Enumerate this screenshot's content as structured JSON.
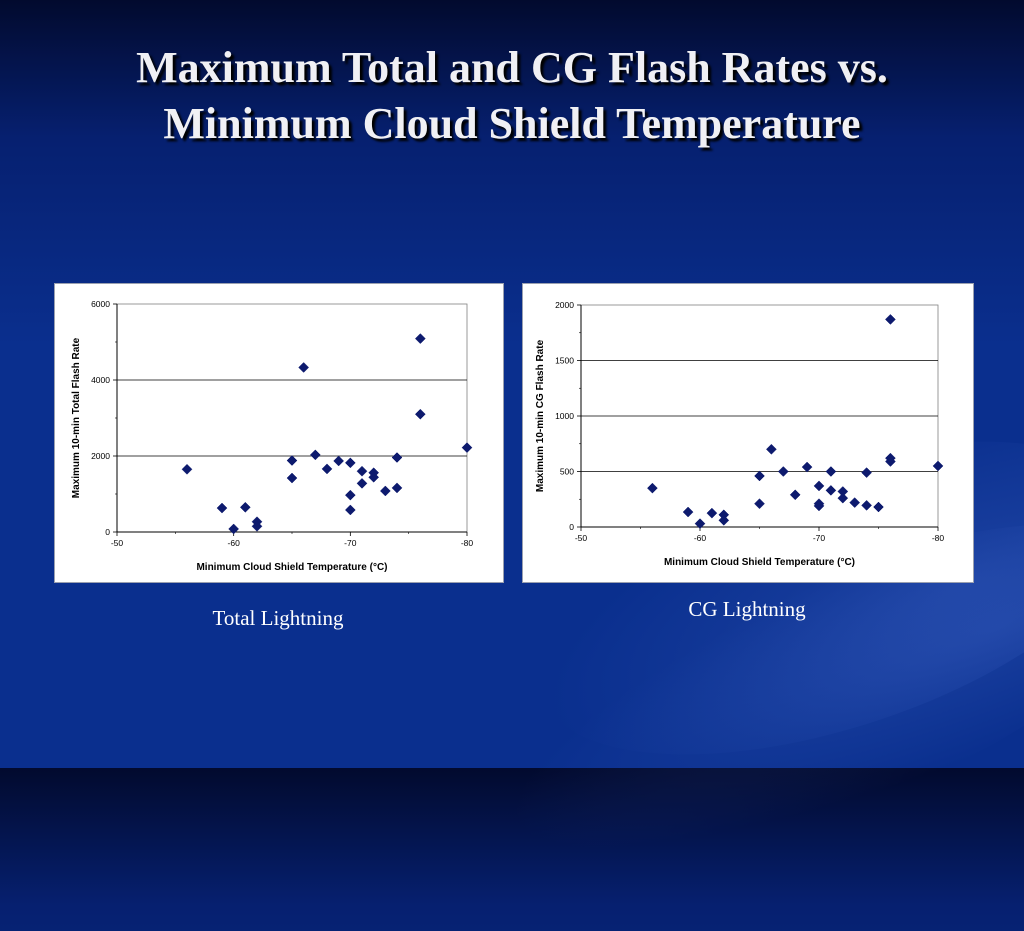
{
  "slide": {
    "title_line1": "Maximum Total and CG Flash Rates vs.",
    "title_line2": "Minimum Cloud Shield Temperature"
  },
  "captions": {
    "total": "Total Lightning",
    "cg": "CG Lightning"
  },
  "colors": {
    "marker": "#0d1a6e",
    "gridline": "#000000",
    "background": "#0a2f8e"
  },
  "chart_data": [
    {
      "type": "scatter",
      "id": "total",
      "xlabel": "Minimum Cloud Shield Temperature (°C)",
      "ylabel": "Maximum 10-min Total Flash Rate",
      "xlim": [
        -50,
        -80
      ],
      "ylim": [
        0,
        6000
      ],
      "xticks": [
        -50,
        -60,
        -70,
        -80
      ],
      "yticks": [
        0,
        2000,
        4000,
        6000
      ],
      "grid": "horizontal",
      "points": [
        [
          -56,
          1650
        ],
        [
          -59,
          630
        ],
        [
          -60,
          80
        ],
        [
          -61,
          650
        ],
        [
          -62,
          270
        ],
        [
          -62,
          150
        ],
        [
          -65,
          1880
        ],
        [
          -65,
          1420
        ],
        [
          -66,
          4330
        ],
        [
          -67,
          2030
        ],
        [
          -68,
          1660
        ],
        [
          -69,
          1870
        ],
        [
          -70,
          1820
        ],
        [
          -70,
          970
        ],
        [
          -70,
          580
        ],
        [
          -71,
          1600
        ],
        [
          -71,
          1280
        ],
        [
          -72,
          1560
        ],
        [
          -72,
          1440
        ],
        [
          -73,
          1080
        ],
        [
          -74,
          1960
        ],
        [
          -74,
          1160
        ],
        [
          -76,
          5090
        ],
        [
          -76,
          3100
        ],
        [
          -80,
          2220
        ]
      ]
    },
    {
      "type": "scatter",
      "id": "cg",
      "xlabel": "Minimum Cloud Shield Temperature (°C)",
      "ylabel": "Maximum 10-min CG Flash Rate",
      "xlim": [
        -50,
        -80
      ],
      "ylim": [
        0,
        2000
      ],
      "xticks": [
        -50,
        -60,
        -70,
        -80
      ],
      "yticks": [
        0,
        500,
        1000,
        1500,
        2000
      ],
      "grid": "horizontal",
      "points": [
        [
          -56,
          350
        ],
        [
          -59,
          135
        ],
        [
          -60,
          30
        ],
        [
          -61,
          125
        ],
        [
          -62,
          110
        ],
        [
          -62,
          60
        ],
        [
          -65,
          460
        ],
        [
          -65,
          210
        ],
        [
          -66,
          700
        ],
        [
          -67,
          500
        ],
        [
          -68,
          290
        ],
        [
          -69,
          540
        ],
        [
          -70,
          370
        ],
        [
          -70,
          210
        ],
        [
          -70,
          190
        ],
        [
          -71,
          500
        ],
        [
          -71,
          330
        ],
        [
          -72,
          320
        ],
        [
          -72,
          260
        ],
        [
          -73,
          220
        ],
        [
          -74,
          490
        ],
        [
          -74,
          195
        ],
        [
          -75,
          180
        ],
        [
          -76,
          1870
        ],
        [
          -76,
          620
        ],
        [
          -76,
          590
        ],
        [
          -80,
          550
        ]
      ]
    }
  ]
}
